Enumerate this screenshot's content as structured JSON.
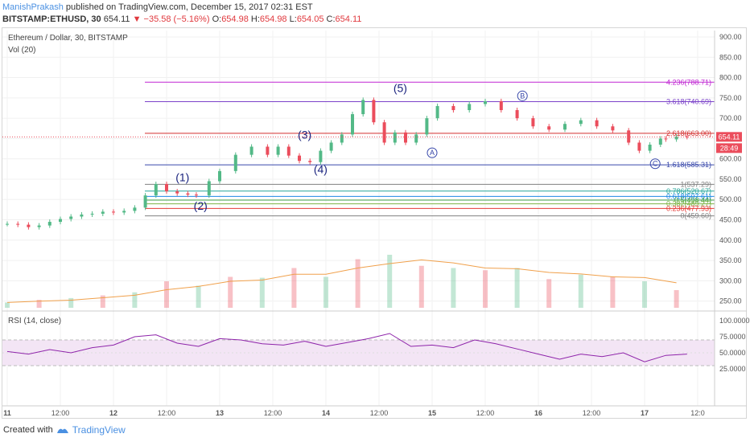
{
  "header": {
    "author": "ManishPrakash",
    "published": "published on TradingView.com, December 15, 2017 02:31 EST",
    "symbol": "BITSTAMP:ETHUSD, 30",
    "last": "654.11",
    "change_arrow": "▼",
    "change": "−35.58 (−5.16%)",
    "o_label": "O:",
    "o": "654.98",
    "h_label": "H:",
    "h": "654.98",
    "l_label": "L:",
    "l": "654.05",
    "c_label": "C:",
    "c": "654.11"
  },
  "footer": {
    "created_with": "Created with",
    "brand": "TradingView"
  },
  "colors": {
    "up": "#53b987",
    "down": "#eb4d5c",
    "accent": "#4a90e2",
    "rsi": "#8e24aa",
    "vol_ma": "#f0a04b"
  },
  "chart_data": [
    {
      "type": "candlestick",
      "title": "Ethereum / Dollar, 30, BITSTAMP",
      "indicator": "Vol (20)",
      "x_ticks": [
        "11",
        "12:00",
        "12",
        "12:00",
        "13",
        "12:00",
        "14",
        "12:00",
        "15",
        "12:00",
        "16",
        "12:00",
        "17",
        "12:0"
      ],
      "y_ticks": [
        "900.00",
        "850.00",
        "800.00",
        "750.00",
        "700.00",
        "650.00",
        "600.00",
        "550.00",
        "500.00",
        "450.00",
        "400.00",
        "350.00",
        "300.00",
        "250.00"
      ],
      "ylim": [
        225,
        910
      ],
      "last_price_label": "654.11",
      "countdown_label": "28:49",
      "price_path": {
        "x_days": [
          0,
          0.1,
          0.2,
          0.3,
          0.4,
          0.5,
          0.6,
          0.7,
          0.8,
          0.9,
          1.0,
          1.1,
          1.2,
          1.3,
          1.4,
          1.5,
          1.6,
          1.7,
          1.78,
          1.9,
          2.0,
          2.15,
          2.3,
          2.45,
          2.55,
          2.65,
          2.75,
          2.85,
          2.95,
          3.05,
          3.15,
          3.25,
          3.35,
          3.45,
          3.55,
          3.65,
          3.75,
          3.85,
          3.95,
          4.05,
          4.2,
          4.35,
          4.5,
          4.65,
          4.8,
          4.95,
          5.1,
          5.25,
          5.4,
          5.55,
          5.7,
          5.85,
          5.95,
          6.05,
          6.15,
          6.2,
          6.3,
          6.4
        ],
        "close": [
          440,
          438,
          432,
          436,
          445,
          452,
          458,
          463,
          465,
          470,
          468,
          472,
          480,
          510,
          538,
          520,
          515,
          512,
          510,
          545,
          570,
          610,
          630,
          610,
          630,
          608,
          595,
          592,
          620,
          640,
          660,
          710,
          745,
          690,
          640,
          665,
          640,
          660,
          700,
          730,
          720,
          735,
          742,
          720,
          700,
          680,
          672,
          686,
          695,
          680,
          670,
          640,
          620,
          635,
          650,
          648,
          655,
          654
        ]
      },
      "volume": {
        "x_days": [
          0,
          0.3,
          0.6,
          0.9,
          1.2,
          1.5,
          1.8,
          2.1,
          2.4,
          2.7,
          3.0,
          3.3,
          3.6,
          3.9,
          4.2,
          4.5,
          4.8,
          5.1,
          5.4,
          5.7,
          6.0,
          6.3
        ],
        "values": [
          12,
          18,
          22,
          28,
          35,
          60,
          50,
          70,
          68,
          90,
          70,
          110,
          120,
          95,
          90,
          85,
          90,
          65,
          75,
          70,
          60,
          40
        ]
      },
      "fibonacci_levels": [
        {
          "label": "4.236(788.71)",
          "value": 788.71,
          "color": "#c026d3"
        },
        {
          "label": "3.618(740.69)",
          "value": 740.69,
          "color": "#7b42c9"
        },
        {
          "label": "2.618(663.00)",
          "value": 663.0,
          "color": "#d32f2f"
        },
        {
          "label": "1.618(585.31)",
          "value": 585.31,
          "color": "#3949ab"
        },
        {
          "label": "1(537.29)",
          "value": 537.29,
          "color": "#808080"
        },
        {
          "label": "0.786(520.67)",
          "value": 520.67,
          "color": "#26a69a"
        },
        {
          "label": "0.618(507.61)",
          "value": 507.61,
          "color": "#1e88e5"
        },
        {
          "label": "0.5(498.44)",
          "value": 498.44,
          "color": "#43a047"
        },
        {
          "label": "0.382(489.27)",
          "value": 489.27,
          "color": "#7cb342"
        },
        {
          "label": "0.236(477.93)",
          "value": 477.93,
          "color": "#e53935"
        },
        {
          "label": "0(459.60)",
          "value": 459.6,
          "color": "#808080"
        }
      ],
      "wave_labels": [
        {
          "label": "(1)",
          "x_day": 1.65,
          "y": 545,
          "type": "plain"
        },
        {
          "label": "(2)",
          "x_day": 1.82,
          "y": 475,
          "type": "plain"
        },
        {
          "label": "(3)",
          "x_day": 2.8,
          "y": 650,
          "type": "plain"
        },
        {
          "label": "(4)",
          "x_day": 2.95,
          "y": 565,
          "type": "plain"
        },
        {
          "label": "(5)",
          "x_day": 3.7,
          "y": 765,
          "type": "plain"
        },
        {
          "label": "A",
          "x_day": 4.0,
          "y": 615,
          "type": "circle"
        },
        {
          "label": "B",
          "x_day": 4.85,
          "y": 755,
          "type": "circle"
        },
        {
          "label": "C",
          "x_day": 6.1,
          "y": 588,
          "type": "circle"
        }
      ]
    },
    {
      "type": "line",
      "title": "RSI (14, close)",
      "y_ticks": [
        "100.0000",
        "75.0000",
        "50.0000",
        "25.0000"
      ],
      "ylim": [
        0,
        100
      ],
      "band": [
        30,
        70
      ],
      "x_days": [
        0,
        0.2,
        0.4,
        0.6,
        0.8,
        1.0,
        1.2,
        1.4,
        1.6,
        1.8,
        2.0,
        2.2,
        2.4,
        2.6,
        2.8,
        3.0,
        3.2,
        3.4,
        3.6,
        3.8,
        4.0,
        4.2,
        4.4,
        4.6,
        4.8,
        5.0,
        5.2,
        5.4,
        5.6,
        5.8,
        6.0,
        6.2,
        6.4
      ],
      "values": [
        52,
        48,
        55,
        50,
        58,
        62,
        75,
        78,
        65,
        60,
        72,
        70,
        64,
        62,
        68,
        60,
        66,
        72,
        80,
        60,
        62,
        58,
        70,
        64,
        56,
        48,
        40,
        48,
        44,
        50,
        36,
        46,
        48
      ]
    }
  ]
}
